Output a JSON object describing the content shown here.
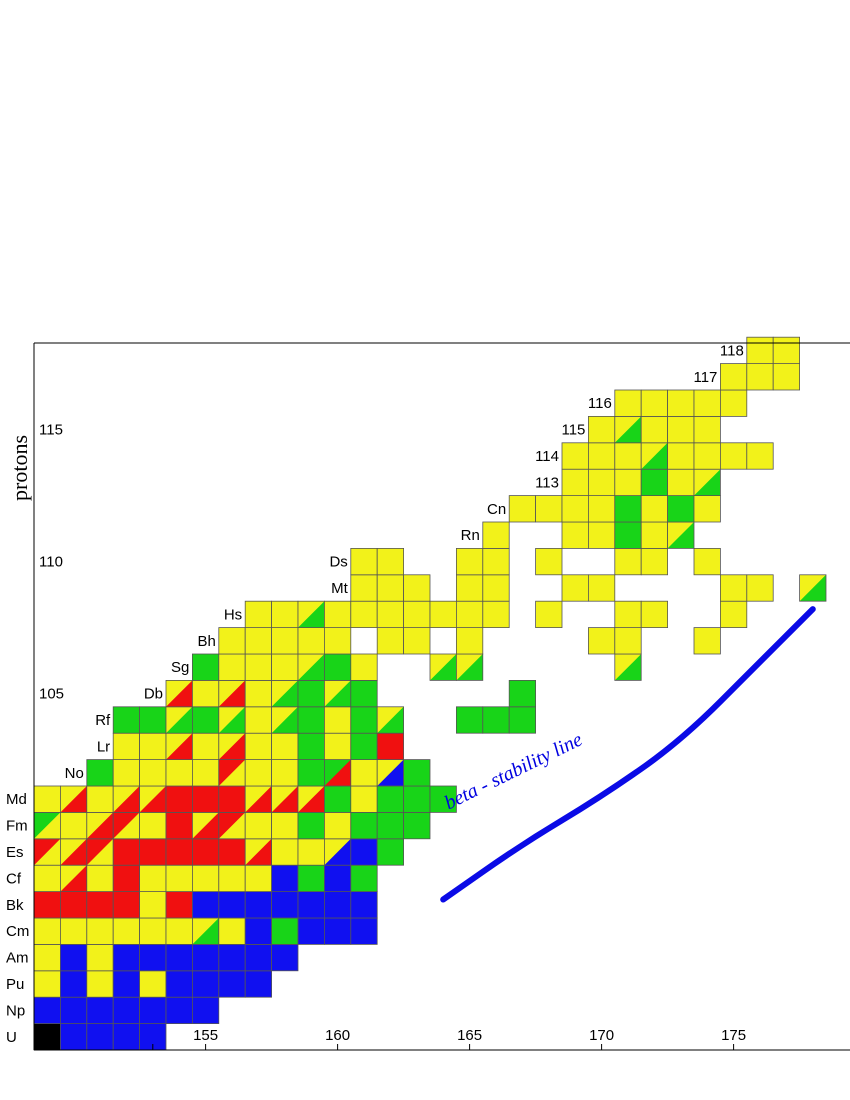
{
  "chart_data": {
    "type": "heatmap",
    "title": "",
    "xlabel": "",
    "ylabel": "protons",
    "xlim": [
      148.5,
      178.5
    ],
    "ylim": [
      91.5,
      118.5
    ],
    "x_ticks": [
      155,
      160,
      165,
      170,
      175
    ],
    "y_ticks": [
      105,
      110,
      115
    ],
    "element_labels": [
      {
        "z": 92,
        "label": "U"
      },
      {
        "z": 93,
        "label": "Np"
      },
      {
        "z": 94,
        "label": "Pu"
      },
      {
        "z": 95,
        "label": "Am"
      },
      {
        "z": 96,
        "label": "Cm"
      },
      {
        "z": 97,
        "label": "Bk"
      },
      {
        "z": 98,
        "label": "Cf"
      },
      {
        "z": 99,
        "label": "Es"
      },
      {
        "z": 100,
        "label": "Fm"
      },
      {
        "z": 101,
        "label": "Md"
      },
      {
        "z": 102,
        "label": "No"
      },
      {
        "z": 103,
        "label": "Lr"
      },
      {
        "z": 104,
        "label": "Rf"
      },
      {
        "z": 105,
        "label": "Db"
      },
      {
        "z": 106,
        "label": "Sg"
      },
      {
        "z": 107,
        "label": "Bh"
      },
      {
        "z": 108,
        "label": "Hs"
      },
      {
        "z": 109,
        "label": "Mt"
      },
      {
        "z": 110,
        "label": "Ds"
      },
      {
        "z": 111,
        "label": "Rn"
      },
      {
        "z": 112,
        "label": "Cn"
      },
      {
        "z": 113,
        "label": "113"
      },
      {
        "z": 114,
        "label": "114"
      },
      {
        "z": 115,
        "label": "115"
      },
      {
        "z": 116,
        "label": "116"
      },
      {
        "z": 117,
        "label": "117"
      },
      {
        "z": 118,
        "label": "118"
      }
    ],
    "colors": {
      "Y": "#f2f21a",
      "G": "#18d418",
      "R": "#f01010",
      "B": "#1010f0",
      "K": "#000000"
    },
    "rows": [
      {
        "z": 92,
        "n_start": 149,
        "cells": "KBBBB"
      },
      {
        "z": 93,
        "n_start": 149,
        "cells": "BBBBBBB"
      },
      {
        "z": 94,
        "n_start": 149,
        "cells": "YBYBYBBBB"
      },
      {
        "z": 95,
        "n_start": 149,
        "cells": "YBYBBBBBBB"
      },
      {
        "z": 96,
        "n_start": 149,
        "cells": "YYYYYYY/GYBGBBB"
      },
      {
        "z": 97,
        "n_start": 149,
        "cells": "RRRRYRBBBBBBB"
      },
      {
        "z": 98,
        "n_start": 149,
        "cells": "YY/RYRYYYYYBGBG"
      },
      {
        "z": 99,
        "n_start": 149,
        "cells": "R/YY/RR/YRRRRRY/RYYY/BBG"
      },
      {
        "z": 100,
        "n_start": 149,
        "cells": "G/YYY/RR/YYRY/RR/YYYGYGGG"
      },
      {
        "z": 101,
        "n_start": 149,
        "cells": "YY/RYY/RY/RRRRY/RY/RY/RGYGGG"
      },
      {
        "z": 102,
        "n_start": 151,
        "cells": "GYYYYR/YYYGG/RYY/BG"
      },
      {
        "z": 103,
        "n_start": 152,
        "cells": "YYY/RYY/RYYGYGR"
      },
      {
        "z": 104,
        "n_start": 152,
        "cells": "GGY/GGY/GYY/GGYGY/G..GGG"
      },
      {
        "z": 105,
        "n_start": 154,
        "cells": "Y/RYY/RYY/GGY/GG.....G"
      },
      {
        "z": 106,
        "n_start": 155,
        "cells": "GYYYY/GGY..Y/GY/G.....Y/G"
      },
      {
        "z": 107,
        "n_start": 156,
        "cells": "YYYYY.YY.Y....YY..Y"
      },
      {
        "z": 108,
        "n_start": 157,
        "cells": "YYY/GYYYY/YYYY.Y..YY..Y....G"
      },
      {
        "z": 109,
        "n_start": 161,
        "cells": "YYY.YY..YY....YY.Y/G"
      },
      {
        "z": 110,
        "n_start": 161,
        "cells": "YY..YY.Y..YY.Y"
      },
      {
        "z": 111,
        "n_start": 166,
        "cells": "Y..YYGYY/G"
      },
      {
        "z": 112,
        "n_start": 167,
        "cells": "YYYYGYGY"
      },
      {
        "z": 113,
        "n_start": 169,
        "cells": "YYYGYY/G"
      },
      {
        "z": 114,
        "n_start": 169,
        "cells": "YYYY/GYYYY"
      },
      {
        "z": 115,
        "n_start": 170,
        "cells": "YY/GYYY"
      },
      {
        "z": 116,
        "n_start": 171,
        "cells": "YYYYY"
      },
      {
        "z": 117,
        "n_start": 175,
        "cells": "YYY"
      },
      {
        "z": 118,
        "n_start": 176,
        "cells": "YY"
      }
    ],
    "annotations": [
      {
        "text": "beta - stability  line"
      }
    ],
    "stability_line": [
      [
        164,
        97.2
      ],
      [
        167,
        99.3
      ],
      [
        170,
        101.1
      ],
      [
        173,
        103.2
      ],
      [
        176,
        106.2
      ],
      [
        178,
        108.2
      ]
    ]
  }
}
